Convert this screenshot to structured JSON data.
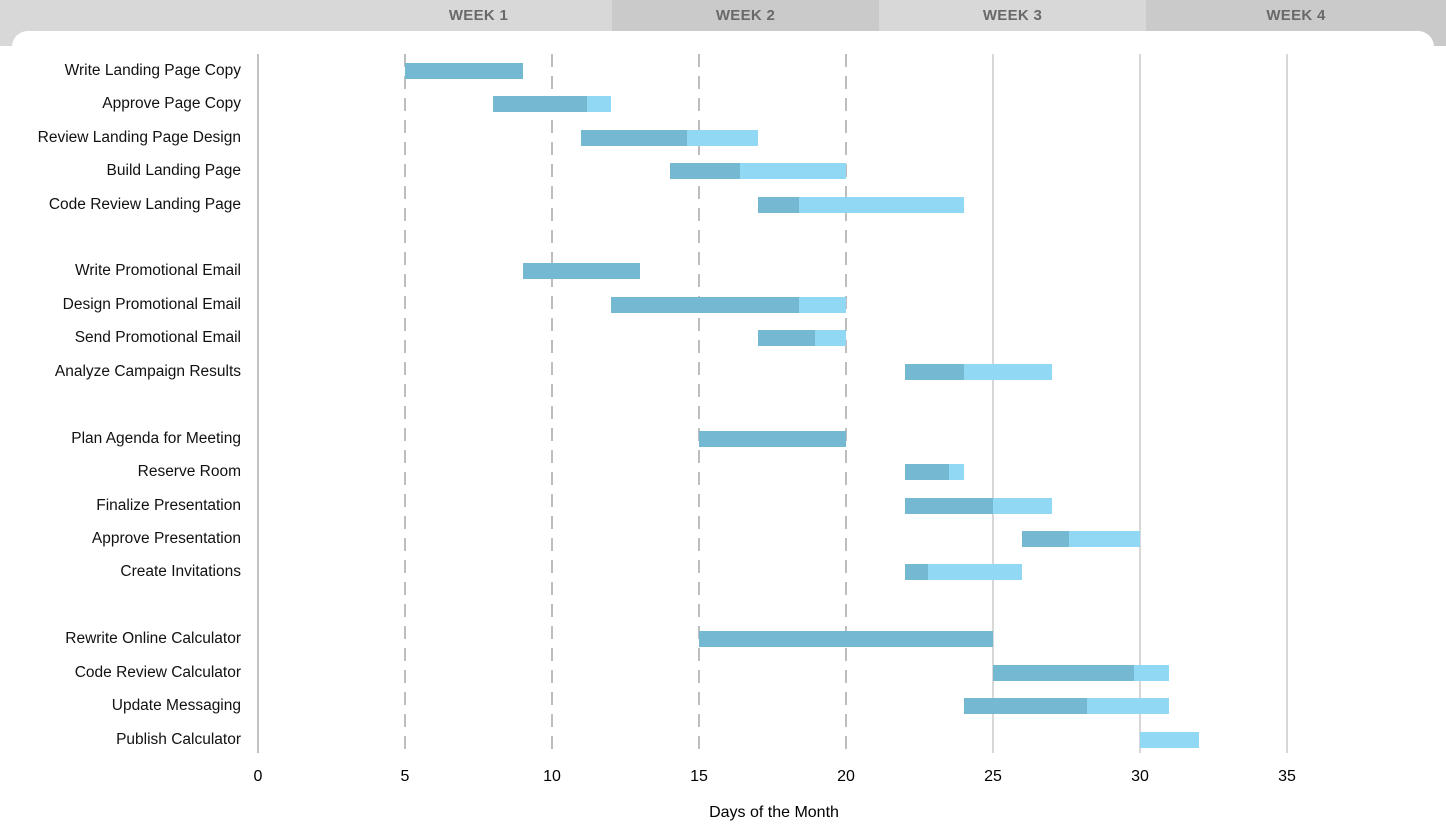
{
  "chart_data": {
    "type": "bar",
    "subtype": "gantt",
    "title": "",
    "xlabel": "Days of the Month",
    "x_ticks": [
      0,
      5,
      10,
      15,
      20,
      25,
      30,
      35
    ],
    "xlim": [
      0,
      40
    ],
    "grid": "vertical, dashed for days 5-20, solid for days 25-35",
    "legend_position": "none",
    "week_headers": [
      "WEEK 1",
      "WEEK 2",
      "WEEK 3",
      "WEEK 4"
    ],
    "bar_encoding": "dark segment = completed portion, light segment = remaining portion",
    "groups": [
      {
        "tasks": [
          {
            "label": "Write Landing Page Copy",
            "start": 5,
            "end": 9,
            "percent_complete": 100
          },
          {
            "label": "Approve Page Copy",
            "start": 8,
            "end": 12,
            "percent_complete": 80
          },
          {
            "label": "Review Landing Page Design",
            "start": 11,
            "end": 17,
            "percent_complete": 60
          },
          {
            "label": "Build Landing Page",
            "start": 14,
            "end": 20,
            "percent_complete": 40
          },
          {
            "label": "Code Review Landing Page",
            "start": 17,
            "end": 24,
            "percent_complete": 20
          }
        ]
      },
      {
        "tasks": [
          {
            "label": "Write Promotional Email",
            "start": 9,
            "end": 13,
            "percent_complete": 100
          },
          {
            "label": "Design Promotional Email",
            "start": 12,
            "end": 20,
            "percent_complete": 80
          },
          {
            "label": "Send Promotional Email",
            "start": 17,
            "end": 20,
            "percent_complete": 65
          },
          {
            "label": "Analyze Campaign Results",
            "start": 22,
            "end": 27,
            "percent_complete": 40
          }
        ]
      },
      {
        "tasks": [
          {
            "label": "Plan Agenda for Meeting",
            "start": 15,
            "end": 20,
            "percent_complete": 100
          },
          {
            "label": "Reserve Room",
            "start": 22,
            "end": 24,
            "percent_complete": 75
          },
          {
            "label": "Finalize Presentation",
            "start": 22,
            "end": 27,
            "percent_complete": 60
          },
          {
            "label": "Approve Presentation",
            "start": 26,
            "end": 30,
            "percent_complete": 40
          },
          {
            "label": "Create Invitations",
            "start": 22,
            "end": 26,
            "percent_complete": 20
          }
        ]
      },
      {
        "tasks": [
          {
            "label": "Rewrite Online Calculator",
            "start": 15,
            "end": 25,
            "percent_complete": 100
          },
          {
            "label": "Code Review Calculator",
            "start": 25,
            "end": 31,
            "percent_complete": 80
          },
          {
            "label": "Update Messaging",
            "start": 24,
            "end": 31,
            "percent_complete": 60
          },
          {
            "label": "Publish Calculator",
            "start": 30,
            "end": 32,
            "percent_complete": 0
          }
        ]
      }
    ]
  },
  "colors": {
    "bar_completed": "#74b8d1",
    "bar_remaining": "#90d8f4",
    "header_band_light": "#d8d8d8",
    "header_band_dark": "#cacaca",
    "header_text": "#696969",
    "gridline_dashed": "#bdbdbd",
    "gridline_solid": "#d7d7d7",
    "axis_line": "#c1c1c1",
    "label_text": "#111111"
  }
}
